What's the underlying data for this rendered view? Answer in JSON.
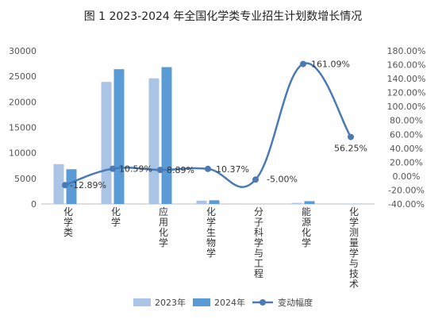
{
  "chart_data": {
    "type": "bar",
    "title": "图 1 2023-2024 年全国化学类专业招生计划数增长情况",
    "categories": [
      "化学类",
      "化学",
      "应用化学",
      "化学生物学",
      "分子科学与工程",
      "能源化学",
      "化学测量学与技术"
    ],
    "series": [
      {
        "name": "2023年",
        "type": "bar",
        "axis": "left",
        "color": "#a9c4e4",
        "values": [
          7800,
          23900,
          24600,
          650,
          10,
          210,
          20
        ]
      },
      {
        "name": "2024年",
        "type": "bar",
        "axis": "left",
        "color": "#5b9bd5",
        "values": [
          6800,
          26400,
          26800,
          720,
          10,
          550,
          30
        ]
      },
      {
        "name": "变动幅度",
        "type": "line",
        "axis": "right",
        "color": "#4a7ab5",
        "values": [
          -12.89,
          10.59,
          8.89,
          10.37,
          -5.0,
          161.09,
          56.25
        ],
        "labels": [
          "-12.89%",
          "10.59%",
          "8.89%",
          "10.37%",
          "-5.00%",
          "161.09%",
          "56.25%"
        ]
      }
    ],
    "y_left": {
      "min": 0,
      "max": 30000,
      "ticks": [
        "0",
        "5000",
        "10000",
        "15000",
        "20000",
        "25000",
        "30000"
      ]
    },
    "y_right": {
      "min": -40,
      "max": 180,
      "ticks": [
        "-40.00%",
        "-20.00%",
        "0.00%",
        "20.00%",
        "40.00%",
        "60.00%",
        "80.00%",
        "100.00%",
        "120.00%",
        "140.00%",
        "160.00%",
        "180.00%"
      ]
    },
    "legend": {
      "position": "bottom"
    },
    "grid": false
  }
}
